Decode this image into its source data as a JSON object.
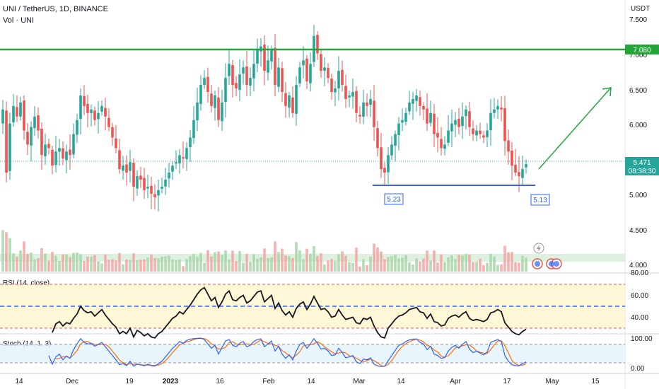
{
  "header": {
    "title": "UNI / TetherUS, 1D, BINANCE",
    "volume_label": "Vol · UNI",
    "currency": "USDT"
  },
  "price_axis": {
    "ticks": [
      "7.500",
      "7.000",
      "6.500",
      "6.000",
      "5.000",
      "4.500",
      "4.000"
    ]
  },
  "tags": {
    "resistance": "7.080",
    "last_price": "5.471",
    "countdown": "08:38:30"
  },
  "lows": {
    "left": "5.23",
    "right": "5.13"
  },
  "rsi": {
    "label": "RSI (14, close)",
    "ticks": [
      "80.00",
      "60.00",
      "40.00"
    ]
  },
  "stoch": {
    "label": "Stoch (14, 1, 3)",
    "ticks": [
      "100.00",
      "0.00"
    ]
  },
  "time_axis": [
    "14",
    "Dec",
    "19",
    "2023",
    "16",
    "Feb",
    "14",
    "Mar",
    "14",
    "Apr",
    "17",
    "May",
    "15"
  ],
  "colors": {
    "up": "#26a69a",
    "down": "#ef5350",
    "resistance": "#22a63a",
    "support": "#2962ff",
    "projection": "#22a63a",
    "rsi_line": "#131722",
    "stoch_k": "#2962ff",
    "stoch_d": "#ff6d00"
  },
  "chart_data": {
    "type": "candlestick",
    "symbol": "UNI / TetherUS",
    "interval": "1D",
    "exchange": "BINANCE",
    "resistance_level": 7.08,
    "support_line_level": 5.13,
    "annotated_lows": [
      5.23,
      5.13
    ],
    "last_price": 5.471,
    "projection": {
      "from": 5.36,
      "to": 6.52
    },
    "close": [
      6.25,
      5.35,
      6.05,
      6.3,
      6.15,
      6.35,
      5.95,
      5.75,
      6.0,
      6.15,
      5.95,
      5.6,
      5.75,
      5.7,
      5.45,
      5.65,
      5.7,
      5.55,
      5.65,
      5.6,
      5.9,
      6.1,
      6.45,
      6.3,
      6.2,
      6.25,
      6.1,
      6.2,
      6.3,
      6.15,
      6.0,
      5.85,
      5.7,
      5.4,
      5.45,
      5.35,
      5.5,
      5.15,
      5.3,
      5.25,
      5.1,
      5.15,
      5.05,
      5.0,
      5.1,
      5.15,
      5.25,
      5.35,
      5.45,
      5.5,
      5.6,
      5.55,
      5.7,
      5.85,
      6.1,
      6.35,
      6.6,
      6.7,
      6.5,
      6.3,
      6.45,
      6.1,
      6.35,
      6.7,
      6.9,
      6.6,
      6.55,
      6.75,
      6.85,
      6.6,
      6.7,
      6.9,
      7.1,
      7.15,
      6.8,
      6.95,
      7.1,
      6.6,
      6.85,
      6.5,
      6.3,
      6.45,
      6.2,
      6.6,
      6.85,
      6.95,
      6.65,
      6.9,
      7.3,
      7.05,
      6.8,
      6.85,
      6.7,
      6.5,
      6.55,
      6.8,
      6.6,
      6.4,
      6.45,
      6.5,
      6.2,
      6.15,
      6.35,
      6.3,
      6.4,
      6.0,
      5.7,
      5.4,
      5.35,
      5.6,
      5.75,
      5.9,
      6.05,
      6.1,
      6.2,
      6.35,
      6.4,
      6.45,
      6.3,
      6.25,
      6.05,
      6.2,
      5.9,
      5.85,
      5.7,
      5.75,
      5.95,
      6.05,
      6.1,
      6.0,
      6.15,
      6.25,
      6.0,
      5.9,
      5.95,
      5.9,
      5.85,
      5.95,
      6.2,
      6.25,
      6.3,
      6.25,
      5.8,
      5.65,
      5.45,
      5.35,
      5.3,
      5.4,
      5.47
    ],
    "rsi": [
      null,
      null,
      null,
      null,
      null,
      null,
      null,
      null,
      null,
      null,
      null,
      null,
      null,
      null,
      36,
      44,
      46,
      42,
      45,
      44,
      49,
      53,
      60,
      56,
      54,
      55,
      51,
      54,
      57,
      52,
      48,
      44,
      41,
      35,
      37,
      35,
      40,
      32,
      38,
      36,
      33,
      35,
      32,
      31,
      35,
      37,
      41,
      45,
      49,
      51,
      55,
      53,
      57,
      61,
      66,
      71,
      75,
      77,
      71,
      65,
      68,
      59,
      64,
      71,
      74,
      66,
      65,
      68,
      70,
      63,
      65,
      69,
      73,
      74,
      64,
      67,
      70,
      58,
      63,
      56,
      52,
      55,
      50,
      58,
      62,
      64,
      57,
      62,
      69,
      63,
      57,
      58,
      55,
      50,
      51,
      57,
      52,
      48,
      49,
      50,
      45,
      44,
      49,
      48,
      50,
      42,
      36,
      32,
      31,
      40,
      44,
      48,
      51,
      52,
      54,
      57,
      58,
      59,
      55,
      54,
      49,
      53,
      46,
      45,
      42,
      43,
      49,
      51,
      52,
      50,
      53,
      55,
      49,
      47,
      48,
      47,
      46,
      48,
      54,
      55,
      57,
      55,
      45,
      41,
      37,
      35,
      34,
      37,
      39
    ],
    "stoch_k": [
      null,
      null,
      null,
      null,
      null,
      null,
      null,
      null,
      null,
      null,
      null,
      null,
      null,
      40,
      10,
      35,
      45,
      25,
      38,
      30,
      60,
      80,
      98,
      85,
      80,
      82,
      72,
      78,
      85,
      70,
      55,
      40,
      25,
      8,
      12,
      5,
      20,
      3,
      10,
      8,
      4,
      10,
      5,
      3,
      12,
      20,
      35,
      50,
      65,
      75,
      88,
      82,
      92,
      96,
      98,
      99,
      100,
      95,
      80,
      65,
      75,
      45,
      68,
      90,
      95,
      75,
      70,
      82,
      88,
      70,
      75,
      88,
      95,
      97,
      70,
      80,
      90,
      55,
      72,
      45,
      30,
      42,
      25,
      55,
      78,
      85,
      65,
      80,
      98,
      82,
      62,
      65,
      55,
      40,
      42,
      65,
      50,
      32,
      35,
      40,
      18,
      12,
      28,
      25,
      32,
      10,
      4,
      2,
      3,
      22,
      40,
      58,
      75,
      80,
      88,
      94,
      96,
      97,
      85,
      80,
      60,
      72,
      45,
      40,
      30,
      33,
      55,
      68,
      75,
      65,
      78,
      88,
      62,
      50,
      55,
      48,
      42,
      52,
      85,
      90,
      95,
      88,
      40,
      20,
      8,
      5,
      4,
      12,
      18
    ],
    "stoch_d": [
      null,
      null,
      null,
      null,
      null,
      null,
      null,
      null,
      null,
      null,
      null,
      null,
      null,
      null,
      null,
      28,
      30,
      35,
      36,
      31,
      43,
      57,
      79,
      88,
      88,
      82,
      78,
      77,
      78,
      78,
      70,
      55,
      40,
      24,
      15,
      8,
      12,
      9,
      11,
      7,
      7,
      7,
      6,
      6,
      7,
      12,
      22,
      35,
      50,
      63,
      76,
      82,
      87,
      90,
      95,
      98,
      99,
      98,
      92,
      80,
      73,
      62,
      63,
      68,
      84,
      87,
      80,
      76,
      80,
      80,
      78,
      78,
      86,
      93,
      87,
      82,
      80,
      75,
      72,
      57,
      49,
      39,
      32,
      41,
      53,
      73,
      76,
      77,
      81,
      87,
      81,
      70,
      61,
      53,
      46,
      49,
      52,
      49,
      39,
      36,
      31,
      23,
      19,
      22,
      28,
      22,
      15,
      5,
      3,
      9,
      22,
      40,
      58,
      71,
      81,
      87,
      93,
      96,
      93,
      87,
      75,
      71,
      59,
      52,
      38,
      34,
      39,
      52,
      66,
      69,
      73,
      77,
      76,
      67,
      56,
      51,
      48,
      47,
      60,
      76,
      90,
      91,
      74,
      49,
      23,
      11,
      6,
      7,
      11
    ],
    "rsi_ylim": [
      20,
      90
    ],
    "stoch_ylim": [
      -5,
      110
    ],
    "price_ylim": [
      3.8,
      7.7
    ]
  }
}
